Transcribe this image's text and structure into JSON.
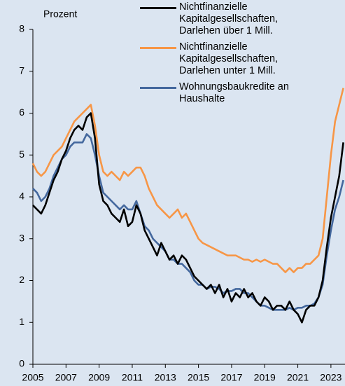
{
  "chart_data": {
    "type": "line",
    "y_label": "Prozent",
    "x": [
      2005,
      2005.25,
      2005.5,
      2005.75,
      2006,
      2006.25,
      2006.5,
      2006.75,
      2007,
      2007.25,
      2007.5,
      2007.75,
      2008,
      2008.25,
      2008.5,
      2008.75,
      2009,
      2009.25,
      2009.5,
      2009.75,
      2010,
      2010.25,
      2010.5,
      2010.75,
      2011,
      2011.25,
      2011.5,
      2011.75,
      2012,
      2012.25,
      2012.5,
      2012.75,
      2013,
      2013.25,
      2013.5,
      2013.75,
      2014,
      2014.25,
      2014.5,
      2014.75,
      2015,
      2015.25,
      2015.5,
      2015.75,
      2016,
      2016.25,
      2016.5,
      2016.75,
      2017,
      2017.25,
      2017.5,
      2017.75,
      2018,
      2018.25,
      2018.5,
      2018.75,
      2019,
      2019.25,
      2019.5,
      2019.75,
      2020,
      2020.25,
      2020.5,
      2020.75,
      2021,
      2021.25,
      2021.5,
      2021.75,
      2022,
      2022.25,
      2022.5,
      2022.75,
      2023,
      2023.25,
      2023.5,
      2023.75
    ],
    "series": [
      {
        "name": "Nichtfinanzielle Kapitalgesellschaften, Darlehen über 1 Mill.",
        "color": "#000000",
        "values": [
          3.8,
          3.7,
          3.6,
          3.8,
          4.1,
          4.4,
          4.6,
          4.9,
          5.1,
          5.4,
          5.6,
          5.7,
          5.6,
          5.9,
          6.0,
          5.4,
          4.3,
          3.9,
          3.8,
          3.6,
          3.5,
          3.4,
          3.7,
          3.3,
          3.4,
          3.8,
          3.6,
          3.2,
          3.0,
          2.8,
          2.6,
          2.9,
          2.7,
          2.5,
          2.6,
          2.4,
          2.6,
          2.5,
          2.3,
          2.1,
          2.0,
          1.9,
          1.8,
          1.9,
          1.7,
          1.9,
          1.6,
          1.8,
          1.5,
          1.7,
          1.6,
          1.8,
          1.6,
          1.7,
          1.5,
          1.4,
          1.6,
          1.5,
          1.3,
          1.4,
          1.4,
          1.3,
          1.5,
          1.3,
          1.2,
          1.0,
          1.3,
          1.4,
          1.4,
          1.6,
          2.0,
          2.8,
          3.5,
          4.0,
          4.5,
          5.3
        ]
      },
      {
        "name": "Nichtfinanzielle Kapitalgesellschaften, Darlehen unter 1 Mill.",
        "color": "#f79646",
        "values": [
          4.8,
          4.6,
          4.5,
          4.6,
          4.8,
          5.0,
          5.1,
          5.2,
          5.4,
          5.6,
          5.8,
          5.9,
          6.0,
          6.1,
          6.2,
          5.7,
          5.0,
          4.6,
          4.5,
          4.6,
          4.5,
          4.4,
          4.6,
          4.5,
          4.6,
          4.7,
          4.7,
          4.5,
          4.2,
          4.0,
          3.8,
          3.7,
          3.6,
          3.5,
          3.6,
          3.7,
          3.5,
          3.6,
          3.4,
          3.2,
          3.0,
          2.9,
          2.85,
          2.8,
          2.75,
          2.7,
          2.65,
          2.6,
          2.6,
          2.6,
          2.55,
          2.5,
          2.5,
          2.45,
          2.5,
          2.45,
          2.5,
          2.45,
          2.4,
          2.4,
          2.3,
          2.2,
          2.3,
          2.2,
          2.3,
          2.3,
          2.4,
          2.4,
          2.5,
          2.6,
          3.0,
          4.0,
          5.0,
          5.8,
          6.2,
          6.6
        ]
      },
      {
        "name": "Wohnungsbaukredite an Haushalte",
        "color": "#44689e",
        "values": [
          4.2,
          4.1,
          3.9,
          4.0,
          4.2,
          4.5,
          4.7,
          4.9,
          5.0,
          5.2,
          5.3,
          5.3,
          5.3,
          5.5,
          5.4,
          5.0,
          4.5,
          4.1,
          4.0,
          3.9,
          3.8,
          3.7,
          3.8,
          3.7,
          3.7,
          3.9,
          3.6,
          3.3,
          3.2,
          3.0,
          2.9,
          2.8,
          2.7,
          2.5,
          2.5,
          2.4,
          2.4,
          2.3,
          2.2,
          2.0,
          1.9,
          1.9,
          1.8,
          1.85,
          1.85,
          1.8,
          1.7,
          1.75,
          1.75,
          1.8,
          1.8,
          1.7,
          1.7,
          1.6,
          1.5,
          1.4,
          1.4,
          1.35,
          1.3,
          1.3,
          1.3,
          1.3,
          1.35,
          1.3,
          1.35,
          1.35,
          1.4,
          1.4,
          1.45,
          1.6,
          1.9,
          2.6,
          3.2,
          3.7,
          4.0,
          4.4
        ]
      }
    ],
    "xlim": [
      2005,
      2023.85
    ],
    "xticks": [
      2005,
      2007,
      2009,
      2011,
      2013,
      2015,
      2017,
      2019,
      2021,
      2023
    ],
    "ylim": [
      0,
      8
    ],
    "yticks": [
      0,
      1,
      2,
      3,
      4,
      5,
      6,
      7,
      8
    ],
    "legend": "top-right"
  }
}
